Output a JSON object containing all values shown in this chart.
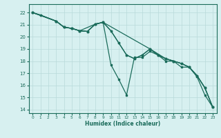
{
  "xlabel": "Humidex (Indice chaleur)",
  "bg_color": "#d7f0f0",
  "grid_color": "#b8dada",
  "line_color": "#1a6b5a",
  "xlim": [
    -0.5,
    23.5
  ],
  "ylim": [
    13.7,
    22.7
  ],
  "xticks": [
    0,
    1,
    2,
    3,
    4,
    5,
    6,
    7,
    8,
    9,
    10,
    11,
    12,
    13,
    14,
    15,
    16,
    17,
    18,
    19,
    20,
    21,
    22,
    23
  ],
  "yticks": [
    14,
    15,
    16,
    17,
    18,
    19,
    20,
    21,
    22
  ],
  "line1_x": [
    0,
    1,
    3,
    4,
    5,
    6,
    7,
    8,
    9,
    10,
    11,
    12,
    13,
    14,
    15,
    16,
    17,
    18,
    19,
    20,
    21,
    22,
    23
  ],
  "line1_y": [
    22.0,
    21.8,
    21.3,
    20.8,
    20.7,
    20.5,
    20.45,
    21.05,
    21.2,
    20.5,
    19.5,
    18.5,
    18.2,
    18.5,
    19.0,
    18.5,
    18.2,
    18.0,
    17.8,
    17.5,
    16.8,
    15.8,
    14.2
  ],
  "line2_x": [
    0,
    3,
    4,
    5,
    6,
    7,
    8,
    9,
    10,
    11,
    12,
    13,
    14,
    15,
    16,
    17,
    18,
    19,
    20,
    21,
    22,
    23
  ],
  "line2_y": [
    22.0,
    21.3,
    20.8,
    20.7,
    20.5,
    20.45,
    21.05,
    21.2,
    17.7,
    16.5,
    15.2,
    18.3,
    18.3,
    18.8,
    18.5,
    18.0,
    18.0,
    17.5,
    17.5,
    16.7,
    15.2,
    14.2
  ],
  "line3_x": [
    0,
    1,
    3,
    4,
    5,
    6,
    8,
    9,
    15,
    17,
    18,
    19,
    20,
    21,
    22,
    23
  ],
  "line3_y": [
    22.0,
    21.8,
    21.3,
    20.8,
    20.7,
    20.5,
    21.05,
    21.2,
    19.0,
    18.2,
    18.0,
    17.8,
    17.5,
    16.8,
    15.8,
    14.2
  ],
  "line4_x": [
    0,
    3,
    4,
    5,
    6,
    7,
    8,
    9,
    10,
    11,
    12,
    13,
    14,
    15,
    16,
    17,
    18,
    19,
    20,
    21,
    22,
    23
  ],
  "line4_y": [
    22.0,
    21.3,
    20.8,
    20.7,
    20.5,
    20.45,
    21.05,
    21.2,
    20.5,
    19.5,
    18.5,
    18.2,
    18.5,
    19.0,
    18.5,
    18.2,
    18.0,
    17.8,
    17.5,
    16.8,
    15.8,
    14.2
  ]
}
